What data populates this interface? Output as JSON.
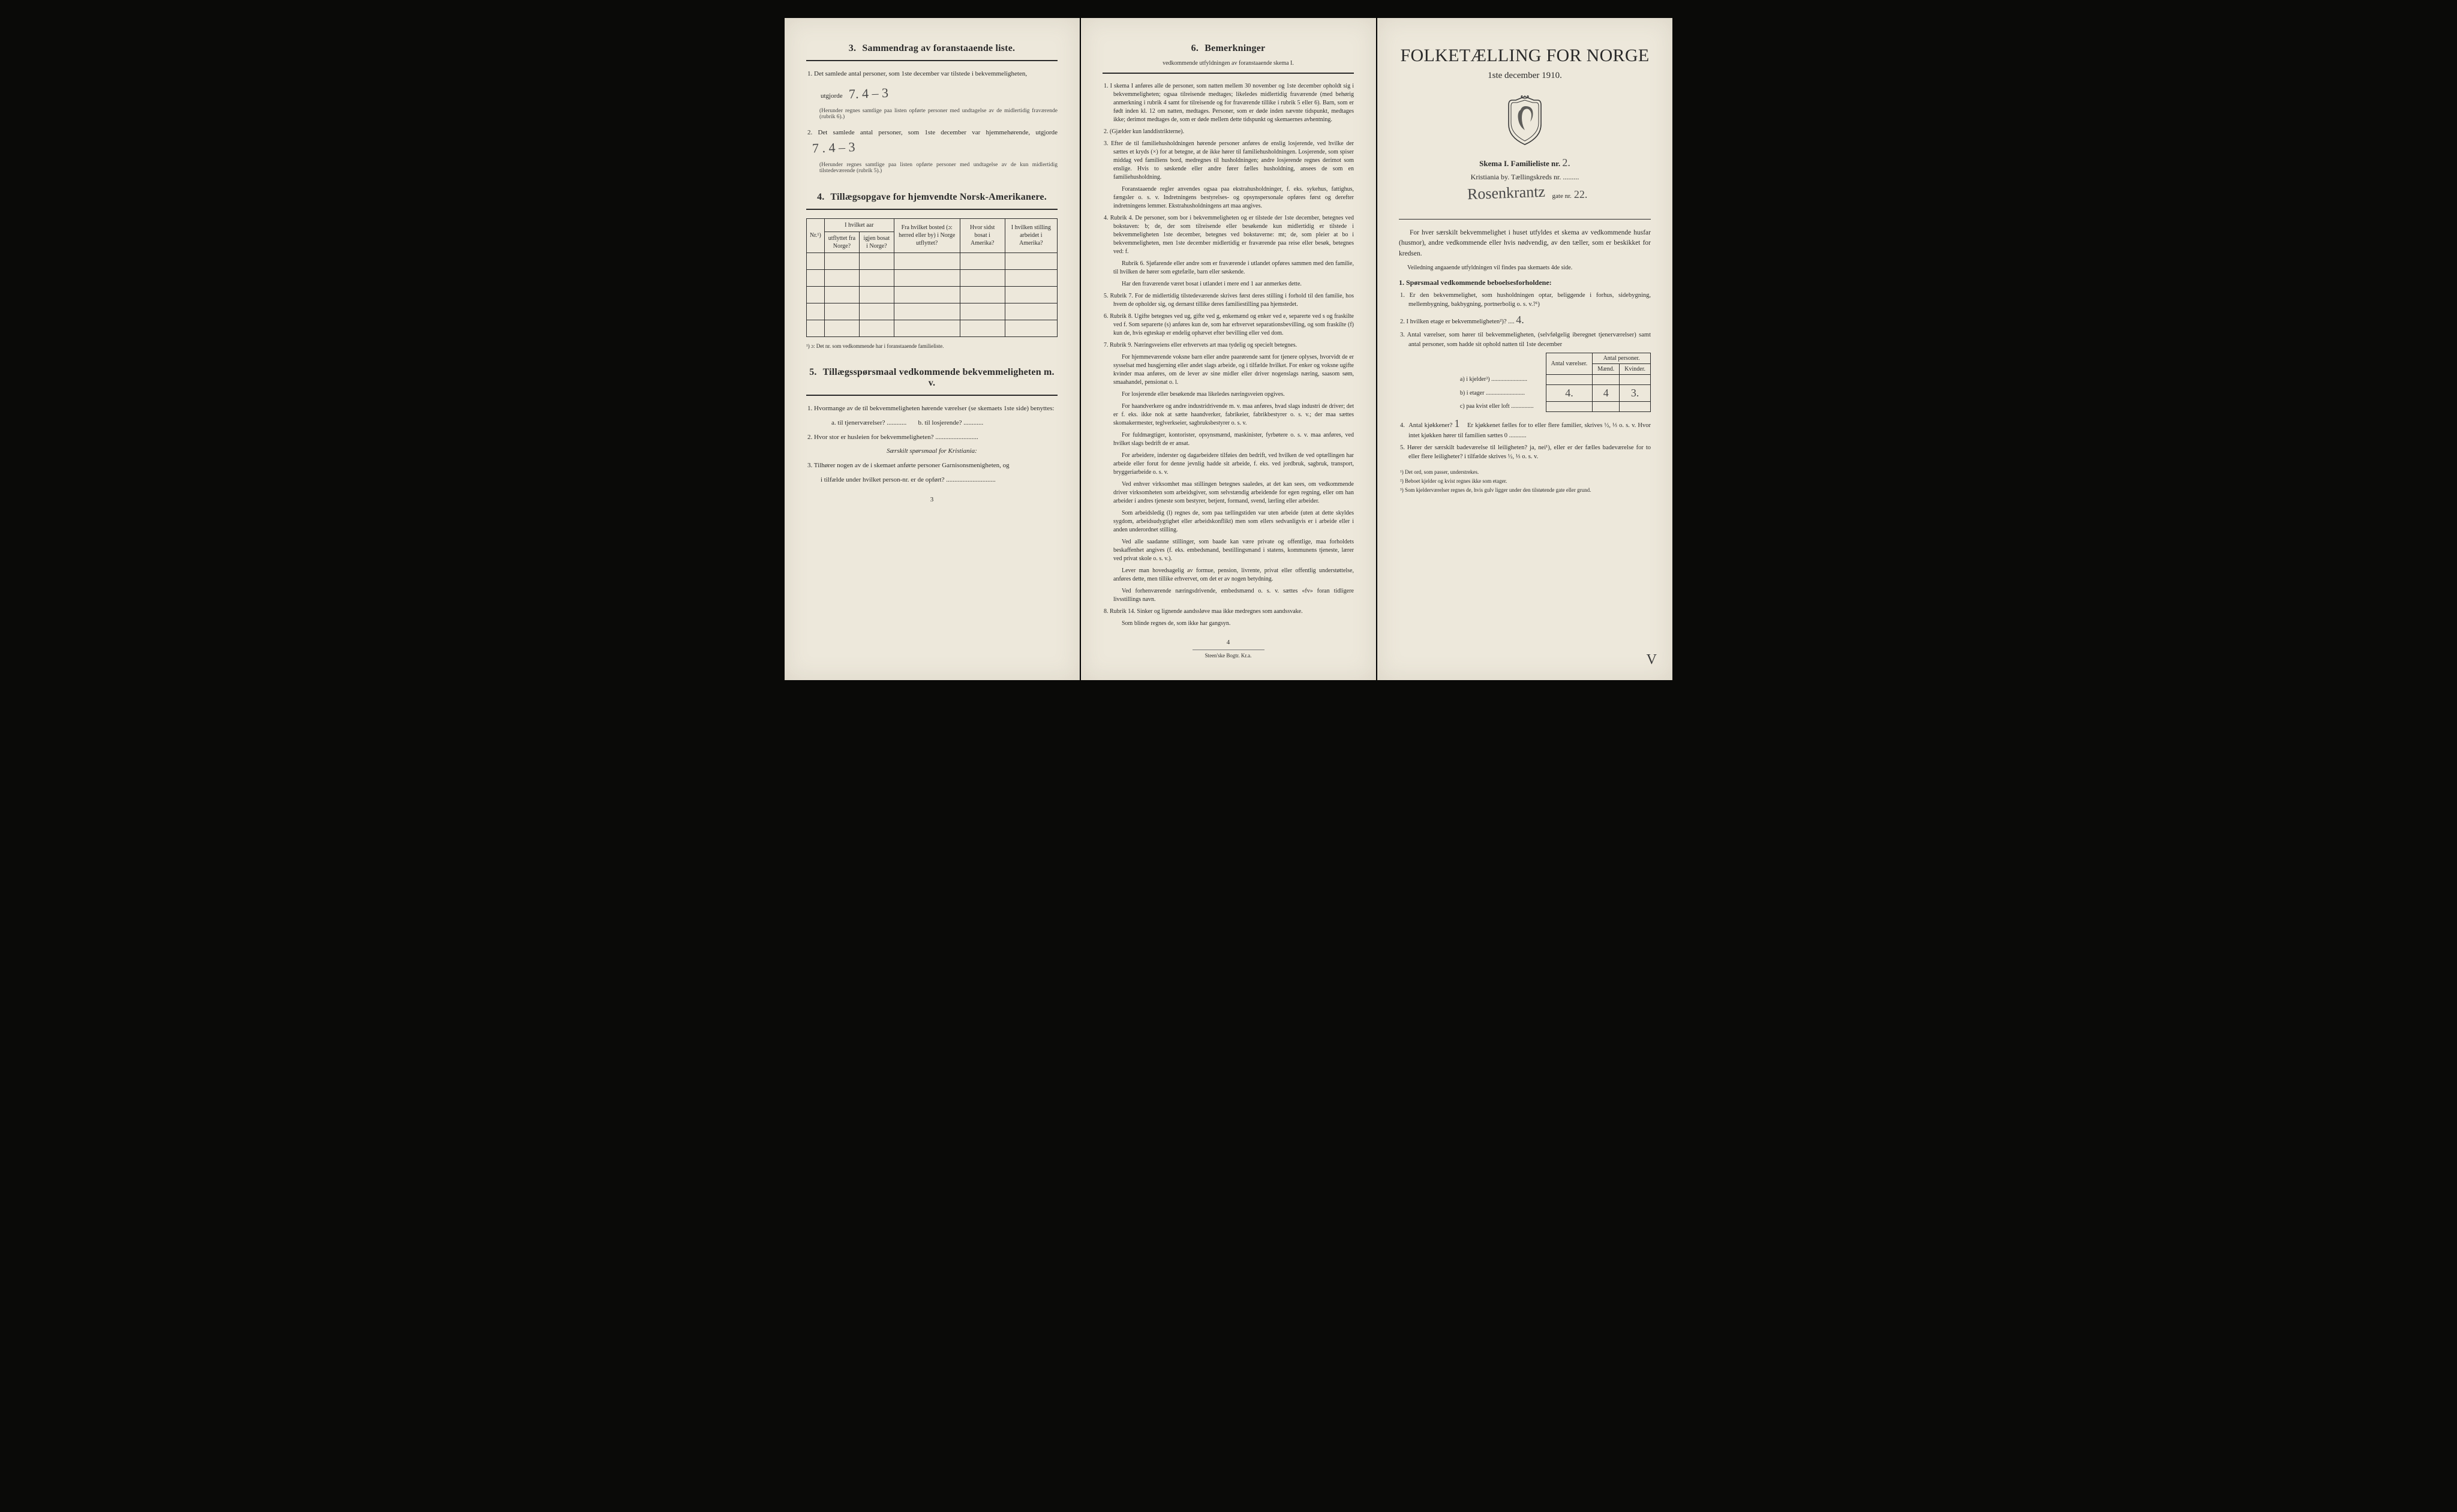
{
  "left": {
    "sec3": {
      "heading_num": "3.",
      "heading": "Sammendrag av foranstaaende liste.",
      "q1": "1.  Det samlede antal personer, som 1ste december var tilstede i bekvemmeligheten,",
      "q1b": "utgjorde",
      "hand1": "7.   4 – 3",
      "q1note": "(Herunder regnes samtlige paa listen opførte personer med undtagelse av de midlertidig fraværende (rubrik 6).)",
      "q2": "2.  Det samlede antal personer, som 1ste december var hjemmehørende, utgjorde",
      "hand2": "7 .   4 – 3",
      "q2note": "(Herunder regnes samtlige paa listen opførte personer med undtagelse av de kun midlertidig tilstedeværende (rubrik 5).)"
    },
    "sec4": {
      "heading_num": "4.",
      "heading": "Tillægsopgave for hjemvendte Norsk-Amerikanere.",
      "cols": {
        "nr": "Nr.¹)",
        "aar_group": "I hvilket aar",
        "utflyttet": "utflyttet fra Norge?",
        "igjen": "igjen bosat i Norge?",
        "bosted": "Fra hvilket bosted (ɔ: herred eller by) i Norge utflyttet?",
        "hvor": "Hvor sidst bosat i Amerika?",
        "stilling": "I hvilken stilling arbeidet i Amerika?"
      },
      "footnote": "¹) ɔ: Det nr. som vedkommende har i foranstaaende familieliste."
    },
    "sec5": {
      "heading_num": "5.",
      "heading": "Tillægsspørsmaal vedkommende bekvemmeligheten m. v.",
      "q1": "1.  Hvormange av de til bekvemmeligheten hørende værelser (se skemaets 1ste side) benyttes:",
      "q1a": "a.  til tjenerværelser? ............",
      "q1b": "b.  til losjerende? ............",
      "q2": "2.  Hvor stor er husleien for bekvemmeligheten? ..........................",
      "subhead": "Særskilt spørsmaal for Kristiania:",
      "q3": "3.  Tilhører nogen av de i skemaet anførte personer Garnisonsmenigheten, og",
      "q3b": "i tilfælde under hvilket person-nr. er de opført? .............................."
    },
    "page_num": "3"
  },
  "mid": {
    "heading_num": "6.",
    "heading": "Bemerkninger",
    "subhead": "vedkommende utfyldningen av foranstaaende skema I.",
    "items": [
      "1.  I skema I anføres alle de personer, som natten mellem 30 november og 1ste december opholdt sig i bekvemmeligheten; ogsaa tilreisende medtages; likeledes midlertidig fraværende (med behørig anmerkning i rubrik 4 samt for tilreisende og for fraværende tillike i rubrik 5 eller 6). Barn, som er født inden kl. 12 om natten, medtages. Personer, som er døde inden nævnte tidspunkt, medtages ikke; derimot medtages de, som er døde mellem dette tidspunkt og skemaernes avhentning.",
      "2.  (Gjælder kun landdistrikterne).",
      "3.  Efter de til familiehusholdningen hørende personer anføres de enslig losjerende, ved hvilke der sættes et kryds (×) for at betegne, at de ikke hører til familiehusholdningen. Losjerende, som spiser middag ved familiens bord, medregnes til husholdningen; andre losjerende regnes derimot som enslige. Hvis to søskende eller andre fører fælles husholdning, ansees de som en familiehusholdning.\n    Foranstaaende regler anvendes ogsaa paa ekstrahusholdninger, f. eks. sykehus, fattighus, fængsler o. s. v. Indretningens bestyrelses- og opsynspersonale opføres først og derefter indretningens lemmer. Ekstrahusholdningens art maa angives.",
      "4.  Rubrik 4. De personer, som bor i bekvemmeligheten og er tilstede der 1ste december, betegnes ved bokstaven: b; de, der som tilreisende eller besøkende kun midlertidig er tilstede i bekvemmeligheten 1ste december, betegnes ved bokstaverne: mt; de, som pleier at bo i bekvemmeligheten, men 1ste december midlertidig er fraværende paa reise eller besøk, betegnes ved: f.\n    Rubrik 6. Sjøfarende eller andre som er fraværende i utlandet opføres sammen med den familie, til hvilken de hører som egtefælle, barn eller søskende.\n    Har den fraværende været bosat i utlandet i mere end 1 aar anmerkes dette.",
      "5.  Rubrik 7. For de midlertidig tilstedeværende skrives først deres stilling i forhold til den familie, hos hvem de opholder sig, og dernæst tillike deres familiestilling paa hjemstedet.",
      "6.  Rubrik 8. Ugifte betegnes ved ug, gifte ved g, enkemænd og enker ved e, separerte ved s og fraskilte ved f. Som separerte (s) anføres kun de, som har erhvervet separationsbevilling, og som fraskilte (f) kun de, hvis egteskap er endelig ophævet efter bevilling eller ved dom.",
      "7.  Rubrik 9. Næringsveiens eller erhvervets art maa tydelig og specielt betegnes.\n    For hjemmeværende voksne barn eller andre paarørende samt for tjenere oplyses, hvorvidt de er sysselsat med husgjerning eller andet slags arbeide, og i tilfælde hvilket. For enker og voksne ugifte kvinder maa anføres, om de lever av sine midler eller driver nogenslags næring, saasom søm, smaahandel, pensionat o. l.\n    For losjerende eller besøkende maa likeledes næringsveien opgives.\n    For haandverkere og andre industridrivende m. v. maa anføres, hvad slags industri de driver; det er f. eks. ikke nok at sætte haandverker, fabrikeier, fabrikbestyrer o. s. v.; der maa sættes skomakermester, teglverkseier, sagbruksbestyrer o. s. v.\n    For fuldmægtiger, kontorister, opsynsmænd, maskinister, fyrbøtere o. s. v. maa anføres, ved hvilket slags bedrift de er ansat.\n    For arbeidere, inderster og dagarbeidere tilføies den bedrift, ved hvilken de ved optællingen har arbeide eller forut for denne jevnlig hadde sit arbeide, f. eks. ved jordbruk, sagbruk, transport, bryggeriarbeide o. s. v.\n    Ved enhver virksomhet maa stillingen betegnes saaledes, at det kan sees, om vedkommende driver virksomheten som arbeidsgiver, som selvstændig arbeidende for egen regning, eller om han arbeider i andres tjeneste som bestyrer, betjent, formand, svend, lærling eller arbeider.\n    Som arbeidsledig (l) regnes de, som paa tællingstiden var uten arbeide (uten at dette skyldes sygdom, arbeidsudygtighet eller arbeidskonflikt) men som ellers sedvanligvis er i arbeide eller i anden underordnet stilling.\n    Ved alle saadanne stillinger, som baade kan være private og offentlige, maa forholdets beskaffenhet angives (f. eks. embedsmand, bestillingsmand i statens, kommunens tjeneste, lærer ved privat skole o. s. v.).\n    Lever man hovedsagelig av formue, pension, livrente, privat eller offentlig understøttelse, anføres dette, men tillike erhvervet, om det er av nogen betydning.\n    Ved forhenværende næringsdrivende, embedsmænd o. s. v. sættes «fv» foran tidligere livsstillings navn.",
      "8.  Rubrik 14. Sinker og lignende aandssløve maa ikke medregnes som aandssvake.\n    Som blinde regnes de, som ikke har gangsyn."
    ],
    "page_num": "4",
    "printer": "Steen'ske Bogtr. Kr.a."
  },
  "right": {
    "title": "FOLKETÆLLING FOR NORGE",
    "date": "1ste december 1910.",
    "skema": "Skema I.    Familieliste nr.",
    "skema_hand": "2.",
    "city": "Kristiania by.    Tællingskreds nr. .........",
    "street_hand": "Rosenkrantz",
    "street_suffix": "gate nr.",
    "street_no": "22.",
    "intro1": "For hver særskilt bekvemmelighet i huset utfyldes et skema av vedkommende husfar (husmor), andre vedkommende eller hvis nødvendig, av den tæller, som er beskikket for kredsen.",
    "intro2": "Veiledning angaaende utfyldningen vil findes paa skemaets 4de side.",
    "q_head": "1.  Spørsmaal vedkommende beboelsesforholdene:",
    "q1": "1.  Er den bekvemmelighet, som husholdningen optar, beliggende i forhus, sidebygning, mellembygning, bakbygning, portnerbolig o. s. v.?¹)",
    "q2": "2.  I hvilken etage er bekvemmeligheten²)? ....",
    "q2_hand": "4.",
    "q3": "3.  Antal værelser, som hører til bekvemmeligheten, (selvfølgelig iberegnet tjenerværelser) samt antal personer, som hadde sit ophold natten til 1ste december",
    "rooms_table": {
      "h1": "Antal værelser.",
      "h2": "Antal personer.",
      "h2a": "Mænd.",
      "h2b": "Kvinder.",
      "rows": [
        {
          "label": "a) i kjelder³) ........................",
          "v": "",
          "m": "",
          "k": ""
        },
        {
          "label": "b) i etager ..........................",
          "v": "4.",
          "m": "4",
          "k": "3."
        },
        {
          "label": "c) paa kvist eller loft ...............",
          "v": "",
          "m": "",
          "k": ""
        }
      ]
    },
    "q4": "4.  Antal kjøkkener? ....   Er kjøkkenet fælles for to eller flere familier, skrives ½, ⅓ o. s. v. Hvor intet kjøkken hører til familien sættes 0 ...........",
    "q4_hand": "1",
    "q5": "5.  Hører der særskilt badeværelse til leiligheten? ja, nei¹), eller er der fælles badeværelse for to eller flere leiligheter? i tilfælde skrives ½, ⅓ o. s. v.",
    "footnotes": [
      "¹) Det ord, som passer, understrekes.",
      "²) Beboet kjelder og kvist regnes ikke som etager.",
      "³) Som kjelderværelser regnes de, hvis gulv ligger under den tilstøtende gate eller grund."
    ],
    "corner": "V"
  }
}
